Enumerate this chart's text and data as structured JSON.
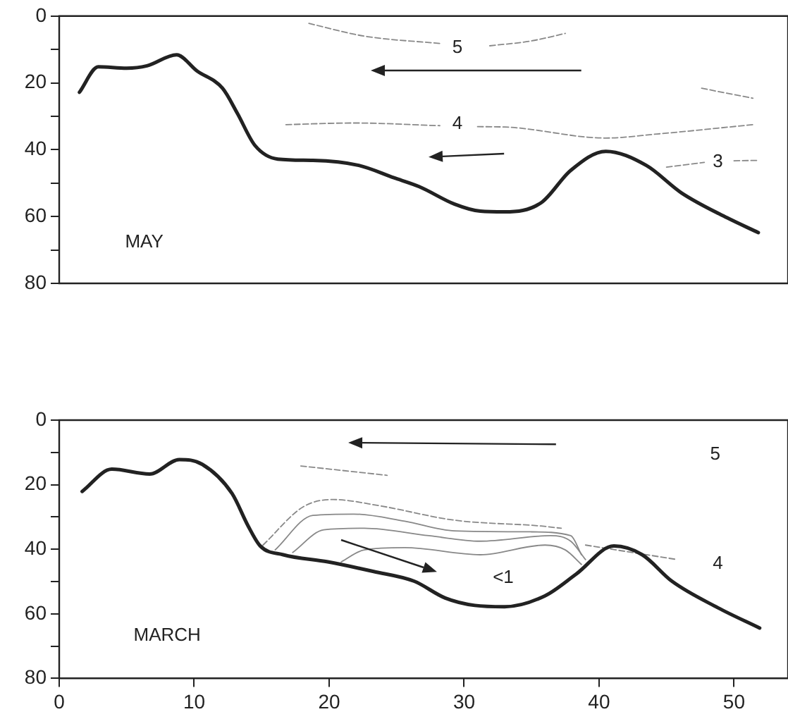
{
  "chart_data": [
    {
      "type": "line",
      "xlim": [
        0,
        54
      ],
      "ylim": [
        80,
        0
      ],
      "yticks": [
        0,
        {
          "value": 10,
          "label": null
        },
        20,
        {
          "value": 30,
          "label": null
        },
        40,
        {
          "value": 50,
          "label": null
        },
        60,
        {
          "value": 70,
          "label": null
        },
        80
      ],
      "tick_labels": "y",
      "grid": false,
      "legend": false,
      "marker": "none",
      "series": [
        {
          "color": "#222222",
          "x": [
            1.5,
            2.9,
            5.0,
            6.5,
            8.7,
            10.2,
            12.1,
            13.2,
            14.5,
            16.2,
            18.8,
            22.2,
            24.8,
            26.7,
            29.3,
            31.2,
            33.0,
            35.7,
            37.9,
            40.5,
            43.5,
            46.1,
            49.5,
            51.8
          ],
          "values": [
            22.8,
            15.2,
            15.6,
            14.9,
            11.6,
            16.4,
            21.6,
            29.1,
            38.7,
            42.8,
            43.2,
            44.7,
            48.4,
            51.1,
            56.3,
            58.4,
            58.6,
            55.9,
            46.2,
            40.5,
            44.7,
            52.9,
            60.4,
            64.8
          ]
        },
        {
          "color": "#888888",
          "line_style": "dashed",
          "x": [
            18.5,
            22.6,
            28.2
          ],
          "values": [
            2.2,
            6.0,
            8.2
          ]
        },
        {
          "color": "#888888",
          "line_style": "dashed",
          "x": [
            31.9,
            34.9,
            37.5
          ],
          "values": [
            8.9,
            7.5,
            5.2
          ]
        },
        {
          "color": "#888888",
          "line_style": "dashed",
          "x": [
            47.6,
            51.4
          ],
          "values": [
            21.6,
            24.6
          ]
        },
        {
          "color": "#888888",
          "line_style": "dashed",
          "x": [
            16.8,
            21.8,
            28.2
          ],
          "values": [
            32.5,
            32.0,
            32.8
          ]
        },
        {
          "color": "#888888",
          "line_style": "dashed",
          "x": [
            31.0,
            33.0,
            40.5,
            44.3,
            51.4
          ],
          "values": [
            33.1,
            33.2,
            36.5,
            35.3,
            32.5
          ]
        },
        {
          "color": "#888888",
          "line_style": "dashed",
          "x": [
            45.0,
            47.8
          ],
          "values": [
            45.2,
            43.8
          ]
        },
        {
          "color": "#888888",
          "line_style": "dashed",
          "x": [
            50.0,
            51.8
          ],
          "values": [
            43.3,
            43.2
          ]
        }
      ],
      "annotations": [
        "5",
        "4",
        "3",
        "MAY"
      ]
    },
    {
      "type": "line",
      "xlim": [
        0,
        54
      ],
      "xticks": [
        0,
        10,
        20,
        30,
        40,
        50
      ],
      "ylim": [
        80,
        0
      ],
      "yticks": [
        0,
        {
          "value": 10,
          "label": null
        },
        20,
        {
          "value": 30,
          "label": null
        },
        40,
        {
          "value": 50,
          "label": null
        },
        60,
        {
          "value": 70,
          "label": null
        },
        80
      ],
      "grid": false,
      "legend": false,
      "marker": "none",
      "series": [
        {
          "color": "#222222",
          "x": [
            1.7,
            3.9,
            6.7,
            8.9,
            10.6,
            12.8,
            14.0,
            14.9,
            16.6,
            19.9,
            23.3,
            26.3,
            28.6,
            30.8,
            33.0,
            36.0,
            38.3,
            41.1,
            43.2,
            45.4,
            48.8,
            51.9
          ],
          "values": [
            22.1,
            15.2,
            16.7,
            12.2,
            13.7,
            22.7,
            32.8,
            39.0,
            41.7,
            43.9,
            46.9,
            49.9,
            55.1,
            57.4,
            57.8,
            54.4,
            47.7,
            39.0,
            41.7,
            49.9,
            58.1,
            64.4
          ]
        },
        {
          "color": "#888888",
          "line_style": "dashed",
          "x": [
            15.1,
            18.1,
            20.3,
            23.7,
            29.3,
            35.7,
            37.2
          ],
          "values": [
            38.7,
            26.8,
            24.6,
            26.5,
            31.0,
            32.8,
            33.5
          ]
        },
        {
          "color": "#888888",
          "x": [
            16.0,
            18.8,
            21.8,
            25.6,
            29.3,
            34.9,
            37.9,
            38.7
          ],
          "values": [
            40.2,
            29.5,
            29.1,
            31.3,
            34.3,
            34.6,
            35.8,
            41.7
          ]
        },
        {
          "color": "#888888",
          "x": [
            17.3,
            19.6,
            22.6,
            27.4,
            31.2,
            36.4,
            37.9,
            39.0
          ],
          "values": [
            41.0,
            34.0,
            33.5,
            35.8,
            37.5,
            35.8,
            37.5,
            43.2
          ]
        },
        {
          "color": "#888888",
          "x": [
            20.9,
            22.6,
            25.6,
            31.2,
            36.0,
            37.5,
            38.7
          ],
          "values": [
            43.9,
            40.2,
            39.5,
            41.7,
            38.7,
            40.2,
            44.7
          ]
        },
        {
          "color": "#888888",
          "line_style": "dashed",
          "x": [
            17.9,
            24.3
          ],
          "values": [
            14.2,
            17.1
          ]
        },
        {
          "color": "#888888",
          "line_style": "dashed",
          "x": [
            39.0,
            45.8
          ],
          "values": [
            38.7,
            43.2
          ]
        }
      ],
      "annotations": [
        "5",
        "4",
        "<1",
        "MARCH"
      ]
    }
  ]
}
